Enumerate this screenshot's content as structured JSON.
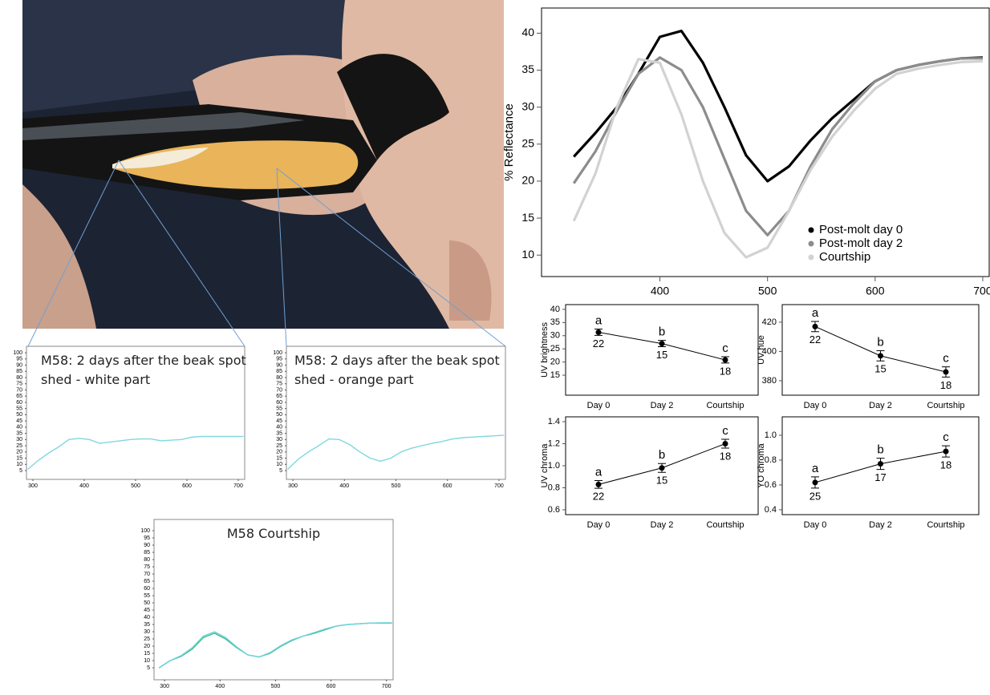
{
  "chart_data": [
    {
      "type": "line",
      "y_label": "% Reflectance",
      "x": [
        320,
        340,
        360,
        380,
        400,
        420,
        440,
        460,
        480,
        500,
        520,
        540,
        560,
        580,
        600,
        620,
        640,
        660,
        680,
        700
      ],
      "series": [
        {
          "name": "Post-molt day 0",
          "color": "#000000",
          "values": [
            23.3,
            26.5,
            30,
            34.5,
            39.5,
            40.3,
            36,
            30,
            23.5,
            20,
            22,
            25.5,
            28.5,
            31,
            33.5,
            35,
            35.7,
            36.2,
            36.6,
            36.7
          ]
        },
        {
          "name": "Post-molt day 2",
          "color": "#8c8c8c",
          "values": [
            19.7,
            24,
            29.5,
            34.5,
            36.7,
            35,
            30,
            23,
            16,
            12.7,
            16,
            22,
            27,
            30.5,
            33.5,
            35,
            35.7,
            36.2,
            36.6,
            36.6
          ]
        },
        {
          "name": "Courtship",
          "color": "#d2d2d2",
          "values": [
            14.6,
            21,
            30,
            36.5,
            36,
            29,
            20,
            13,
            9.7,
            11,
            16,
            21.5,
            26,
            29.5,
            32.5,
            34.5,
            35.2,
            35.7,
            36.1,
            36.2
          ]
        }
      ],
      "xlim": [
        290,
        706
      ],
      "ylim": [
        7.1,
        43.4
      ],
      "xticks": [
        400,
        500,
        600,
        700
      ],
      "yticks": [
        10,
        15,
        20,
        25,
        30,
        35,
        40
      ],
      "legend": "lower right"
    },
    {
      "type": "errorbar",
      "y_label": "UV brightness",
      "categories": [
        "Day 0",
        "Day 2",
        "Courtship"
      ],
      "values": [
        31.3,
        27,
        20.8
      ],
      "errors": [
        1.2,
        1.2,
        1.2
      ],
      "letters": [
        "a",
        "b",
        "c"
      ],
      "n": [
        22,
        15,
        18
      ],
      "color": "#000000",
      "ylim": [
        7.4,
        41.8
      ],
      "yticks": [
        15,
        20,
        25,
        30,
        35,
        40
      ]
    },
    {
      "type": "errorbar",
      "y_label": "UV hue",
      "categories": [
        "Day 0",
        "Day 2",
        "Courtship"
      ],
      "values": [
        417,
        397,
        386
      ],
      "errors": [
        3.5,
        3.5,
        3.5
      ],
      "letters": [
        "a",
        "b",
        "c"
      ],
      "n": [
        22,
        15,
        18
      ],
      "color": "#000000",
      "ylim": [
        370.1,
        432
      ],
      "yticks": [
        380,
        400,
        420
      ]
    },
    {
      "type": "errorbar",
      "y_label": "UV chroma",
      "categories": [
        "Day 0",
        "Day 2",
        "Courtship"
      ],
      "values": [
        0.83,
        0.98,
        1.2
      ],
      "errors": [
        0.035,
        0.04,
        0.04
      ],
      "letters": [
        "a",
        "b",
        "c"
      ],
      "n": [
        22,
        15,
        18
      ],
      "color": "#000000",
      "ylim": [
        0.556,
        1.444
      ],
      "yticks": [
        0.6,
        0.8,
        {
          "value": 1,
          "label": "1.0"
        },
        1.2,
        1.4
      ]
    },
    {
      "type": "errorbar",
      "y_label": "YO chroma",
      "categories": [
        "Day 0",
        "Day 2",
        "Courtship"
      ],
      "values": [
        0.62,
        0.77,
        0.87
      ],
      "errors": [
        0.045,
        0.045,
        0.045
      ],
      "letters": [
        "a",
        "b",
        "c"
      ],
      "n": [
        25,
        17,
        18
      ],
      "color": "#000000",
      "ylim": [
        0.361,
        1.148
      ],
      "yticks": [
        0.4,
        0.6,
        0.8,
        {
          "value": 1,
          "label": "1.0"
        }
      ]
    },
    {
      "type": "line",
      "title": "M58: 2 days after the beak spot shed - white part",
      "x": [
        290,
        310,
        330,
        350,
        370,
        390,
        410,
        430,
        450,
        470,
        490,
        510,
        530,
        550,
        570,
        590,
        610,
        630,
        650,
        670,
        690,
        710
      ],
      "series": [
        {
          "color": "#7fd8e0",
          "values": [
            6,
            13,
            19,
            24,
            30,
            31,
            30,
            27,
            28,
            29,
            30,
            30.5,
            30.5,
            29,
            29.5,
            30,
            32,
            32.5,
            32.5,
            32.5,
            32.5,
            32.5
          ]
        }
      ],
      "xlim": [
        287.5,
        712.5
      ],
      "ylim": [
        -2.1,
        105.2
      ],
      "xticks": [
        300,
        400,
        500,
        600,
        700
      ],
      "yticks": [
        5,
        10,
        15,
        20,
        25,
        30,
        35,
        40,
        45,
        50,
        55,
        60,
        65,
        70,
        75,
        80,
        85,
        90,
        95,
        100
      ]
    },
    {
      "type": "line",
      "title": "M58: 2 days after the beak spot shed - orange part",
      "x": [
        290,
        310,
        330,
        350,
        370,
        390,
        410,
        430,
        450,
        470,
        490,
        510,
        530,
        550,
        570,
        590,
        610,
        630,
        650,
        670,
        690,
        710
      ],
      "series": [
        {
          "color": "#7fd8e0",
          "values": [
            6,
            14,
            20,
            25,
            30.5,
            30,
            26,
            20,
            15,
            12.5,
            15,
            20,
            23,
            25,
            27,
            28.5,
            30.5,
            31.5,
            32,
            32.5,
            33,
            33.5
          ]
        }
      ],
      "xlim": [
        287.5,
        712.5
      ],
      "ylim": [
        -2.1,
        105.2
      ],
      "xticks": [
        300,
        400,
        500,
        600,
        700
      ],
      "yticks": [
        5,
        10,
        15,
        20,
        25,
        30,
        35,
        40,
        45,
        50,
        55,
        60,
        65,
        70,
        75,
        80,
        85,
        90,
        95,
        100
      ]
    },
    {
      "type": "line",
      "title": "M58 Courtship",
      "x": [
        290,
        310,
        330,
        350,
        370,
        390,
        410,
        430,
        450,
        470,
        490,
        510,
        530,
        550,
        570,
        590,
        610,
        630,
        650,
        670,
        690,
        710
      ],
      "series": [
        {
          "color": "#3cb88a",
          "values": [
            5,
            10,
            13,
            18,
            26,
            29,
            25,
            19,
            14,
            12.5,
            15,
            20,
            24,
            27,
            29,
            31.5,
            34,
            35,
            35.5,
            36,
            36,
            36
          ]
        },
        {
          "color": "#6fd3dc",
          "values": [
            5,
            10,
            13.5,
            19,
            27,
            30,
            26,
            19.5,
            14,
            12.5,
            15.5,
            20.5,
            24.5,
            27,
            29.5,
            32,
            34,
            35,
            35.5,
            36,
            36.2,
            36.2
          ]
        }
      ],
      "xlim": [
        281,
        712
      ],
      "ylim": [
        -3.3,
        107.8
      ],
      "xticks": [
        300,
        400,
        500,
        600,
        700
      ],
      "yticks": [
        5,
        10,
        15,
        20,
        25,
        30,
        35,
        40,
        45,
        50,
        55,
        60,
        65,
        70,
        75,
        80,
        85,
        90,
        95,
        100
      ]
    }
  ]
}
